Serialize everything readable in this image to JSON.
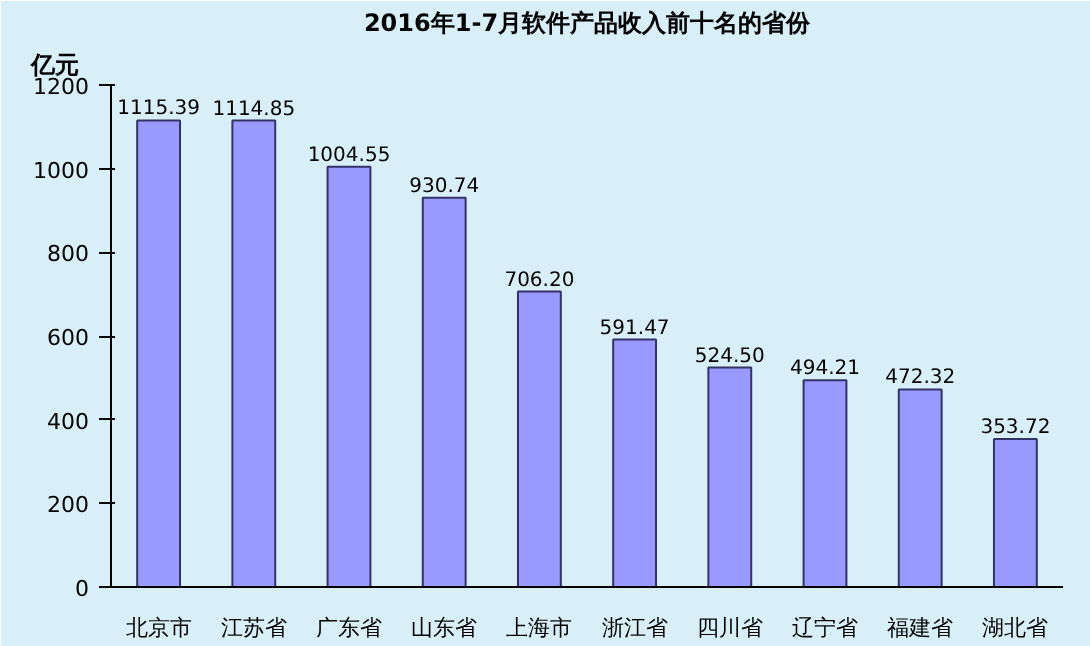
{
  "chart_data": {
    "type": "bar",
    "title": "2016年1-7月软件产品收入前十名的省份",
    "ylabel": "亿元",
    "categories": [
      "北京市",
      "江苏省",
      "广东省",
      "山东省",
      "上海市",
      "浙江省",
      "四川省",
      "辽宁省",
      "福建省",
      "湖北省"
    ],
    "values": [
      1115.39,
      1114.85,
      1004.55,
      930.74,
      706.2,
      591.47,
      524.5,
      494.21,
      472.32,
      353.72
    ],
    "value_labels": [
      "1115.39",
      "1114.85",
      "1004.55",
      "930.74",
      "706.20",
      "591.47",
      "524.50",
      "494.21",
      "472.32",
      "353.72"
    ],
    "color": "#9999ff",
    "ylim": [
      0,
      1200
    ],
    "yticks": [
      0,
      200,
      400,
      600,
      800,
      1000,
      1200
    ],
    "grid": false
  }
}
